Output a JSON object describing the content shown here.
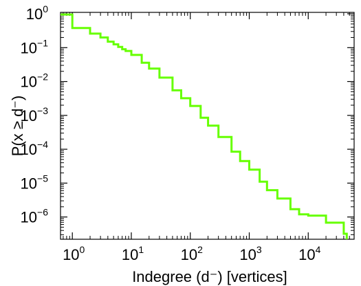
{
  "chart_data": {
    "type": "line",
    "title": "",
    "xlabel": "Indegree (d⁻) [vertices]",
    "ylabel": "P(x ≥ d⁻)",
    "xscale": "log",
    "yscale": "log",
    "xlim": [
      0.63,
      60000
    ],
    "ylim": [
      2.2e-07,
      1.1
    ],
    "grid": false,
    "legend": "none",
    "x_ticks": [
      {
        "value": 1,
        "base": "10",
        "exp": "0"
      },
      {
        "value": 10,
        "base": "10",
        "exp": "1"
      },
      {
        "value": 100,
        "base": "10",
        "exp": "2"
      },
      {
        "value": 1000,
        "base": "10",
        "exp": "3"
      },
      {
        "value": 10000,
        "base": "10",
        "exp": "4"
      }
    ],
    "y_ticks": [
      {
        "value": 1,
        "base": "10",
        "exp": "0"
      },
      {
        "value": 0.1,
        "base": "10",
        "exp": "−1"
      },
      {
        "value": 0.01,
        "base": "10",
        "exp": "−2"
      },
      {
        "value": 0.001,
        "base": "10",
        "exp": "−3"
      },
      {
        "value": 0.0001,
        "base": "10",
        "exp": "−4"
      },
      {
        "value": 1e-05,
        "base": "10",
        "exp": "−5"
      },
      {
        "value": 1e-06,
        "base": "10",
        "exp": "−6"
      }
    ],
    "series": [
      {
        "color": "#66ff00",
        "step": true,
        "x": [
          0.63,
          1,
          2,
          3,
          4,
          5,
          6,
          7,
          8,
          10,
          15,
          20,
          30,
          50,
          70,
          100,
          150,
          200,
          300,
          500,
          700,
          1000,
          1500,
          2000,
          3000,
          5000,
          7000,
          10000,
          20000,
          40000,
          45000
        ],
        "y": [
          0.95,
          0.38,
          0.26,
          0.2,
          0.15,
          0.125,
          0.105,
          0.09,
          0.08,
          0.061,
          0.036,
          0.024,
          0.013,
          0.0055,
          0.0032,
          0.0019,
          0.00085,
          0.0005,
          0.00023,
          8.5e-05,
          4.5e-05,
          2.5e-05,
          1.1e-05,
          6.2e-06,
          3.5e-06,
          1.7e-06,
          1.2e-06,
          1.1e-06,
          6.8e-07,
          3.2e-07,
          2.5e-07
        ]
      }
    ]
  }
}
